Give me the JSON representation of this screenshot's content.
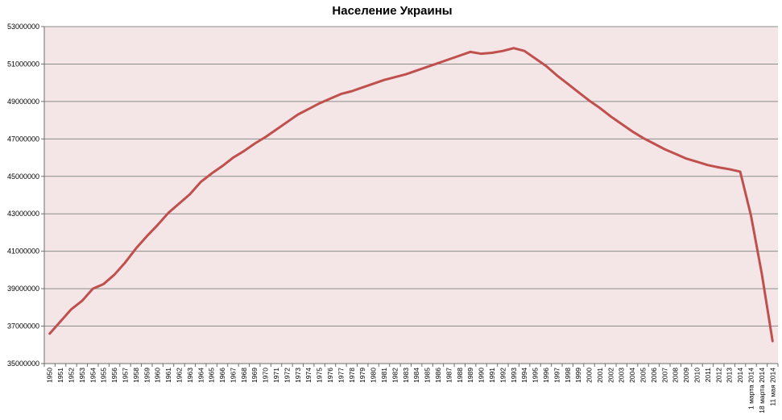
{
  "chart_data": {
    "type": "line",
    "title": "Население Украины",
    "xlabel": "",
    "ylabel": "",
    "ylim": [
      35000000,
      53000000
    ],
    "yticks": [
      35000000,
      37000000,
      39000000,
      41000000,
      43000000,
      45000000,
      47000000,
      49000000,
      51000000,
      53000000
    ],
    "ytick_labels": [
      "35000000",
      "37000000",
      "39000000",
      "41000000",
      "43000000",
      "45000000",
      "47000000",
      "49000000",
      "51000000",
      "53000000"
    ],
    "grid": true,
    "legend": "none",
    "plot_background": "#f4e6e6",
    "line_color": "#c0504d",
    "categories": [
      "1950",
      "1951",
      "1952",
      "1953",
      "1954",
      "1955",
      "1956",
      "1957",
      "1958",
      "1959",
      "1960",
      "1961",
      "1962",
      "1963",
      "1964",
      "1965",
      "1966",
      "1967",
      "1968",
      "1969",
      "1970",
      "1971",
      "1972",
      "1973",
      "1974",
      "1975",
      "1976",
      "1977",
      "1978",
      "1979",
      "1980",
      "1981",
      "1982",
      "1983",
      "1984",
      "1985",
      "1986",
      "1987",
      "1988",
      "1989",
      "1990",
      "1991",
      "1992",
      "1993",
      "1994",
      "1995",
      "1996",
      "1997",
      "1998",
      "1999",
      "2000",
      "2001",
      "2002",
      "2003",
      "2004",
      "2005",
      "2006",
      "2007",
      "2008",
      "2009",
      "2010",
      "2011",
      "2012",
      "2013",
      "2014",
      "1 марта 2014",
      "18 марта 2014",
      "11 мая 2014"
    ],
    "values": [
      36600000,
      37250000,
      37900000,
      38350000,
      39000000,
      39250000,
      39750000,
      40400000,
      41150000,
      41800000,
      42400000,
      43050000,
      43550000,
      44050000,
      44700000,
      45150000,
      45550000,
      46000000,
      46350000,
      46750000,
      47100000,
      47500000,
      47900000,
      48300000,
      48600000,
      48900000,
      49150000,
      49400000,
      49550000,
      49750000,
      49950000,
      50150000,
      50300000,
      50450000,
      50650000,
      50850000,
      51050000,
      51250000,
      51450000,
      51650000,
      51550000,
      51600000,
      51700000,
      51850000,
      51700000,
      51300000,
      50900000,
      50400000,
      49950000,
      49500000,
      49050000,
      48650000,
      48200000,
      47800000,
      47400000,
      47050000,
      46750000,
      46450000,
      46200000,
      45950000,
      45780000,
      45600000,
      45480000,
      45380000,
      45250000,
      42900000,
      39800000,
      36200000
    ]
  }
}
